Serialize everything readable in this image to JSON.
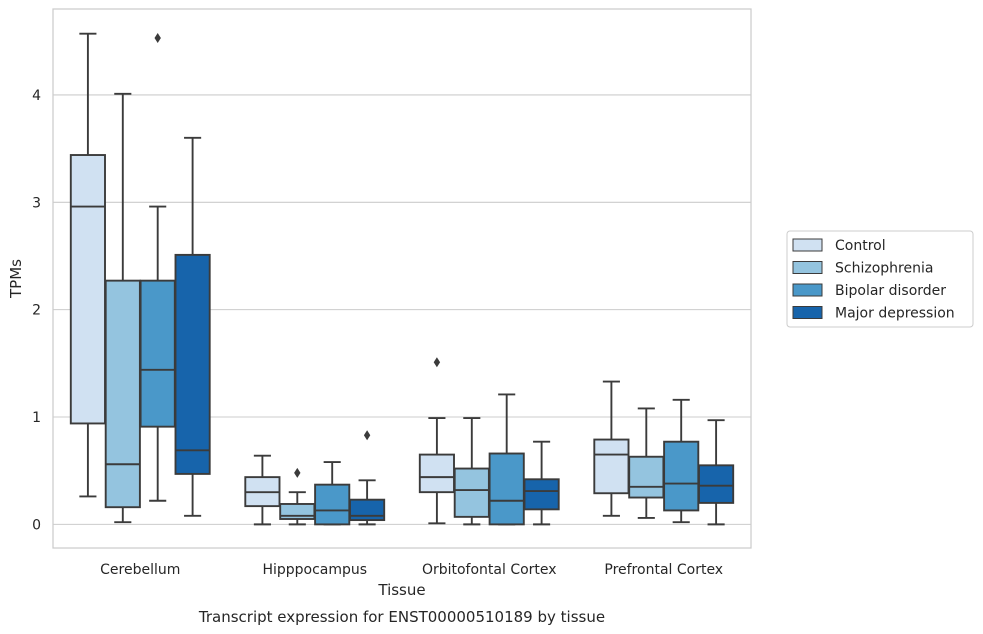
{
  "chart_data": {
    "type": "box",
    "title": "",
    "caption": "Transcript expression for ENST00000510189 by tissue",
    "xlabel": "Tissue",
    "ylabel": "TPMs",
    "ylim": [
      -0.22,
      4.8
    ],
    "yticks": [
      0,
      1,
      2,
      3,
      4
    ],
    "grid": "horizontal",
    "legend_position": "right",
    "categories": [
      "Cerebellum",
      "Hipppocampus",
      "Orbitofontal Cortex",
      "Prefrontal Cortex"
    ],
    "series": [
      {
        "name": "Control",
        "color": "#d0e1f2",
        "boxes": [
          {
            "whislo": 0.26,
            "q1": 0.94,
            "med": 2.96,
            "q3": 3.44,
            "whishi": 4.57,
            "fliers": []
          },
          {
            "whislo": 0.0,
            "q1": 0.17,
            "med": 0.3,
            "q3": 0.44,
            "whishi": 0.64,
            "fliers": []
          },
          {
            "whislo": 0.01,
            "q1": 0.3,
            "med": 0.44,
            "q3": 0.65,
            "whishi": 0.99,
            "fliers": [
              1.51
            ]
          },
          {
            "whislo": 0.08,
            "q1": 0.29,
            "med": 0.65,
            "q3": 0.79,
            "whishi": 1.33,
            "fliers": []
          }
        ]
      },
      {
        "name": "Schizophrenia",
        "color": "#94c4df",
        "boxes": [
          {
            "whislo": 0.02,
            "q1": 0.16,
            "med": 0.56,
            "q3": 2.27,
            "whishi": 4.01,
            "fliers": []
          },
          {
            "whislo": 0.0,
            "q1": 0.05,
            "med": 0.08,
            "q3": 0.19,
            "whishi": 0.3,
            "fliers": [
              0.48
            ]
          },
          {
            "whislo": 0.0,
            "q1": 0.07,
            "med": 0.32,
            "q3": 0.52,
            "whishi": 0.99,
            "fliers": []
          },
          {
            "whislo": 0.06,
            "q1": 0.25,
            "med": 0.35,
            "q3": 0.63,
            "whishi": 1.08,
            "fliers": []
          }
        ]
      },
      {
        "name": "Bipolar disorder",
        "color": "#4a98c9",
        "boxes": [
          {
            "whislo": 0.22,
            "q1": 0.91,
            "med": 1.44,
            "q3": 2.27,
            "whishi": 2.96,
            "fliers": [
              4.53
            ]
          },
          {
            "whislo": 0.0,
            "q1": 0.0,
            "med": 0.13,
            "q3": 0.37,
            "whishi": 0.58,
            "fliers": []
          },
          {
            "whislo": 0.0,
            "q1": 0.0,
            "med": 0.22,
            "q3": 0.66,
            "whishi": 1.21,
            "fliers": []
          },
          {
            "whislo": 0.02,
            "q1": 0.13,
            "med": 0.38,
            "q3": 0.77,
            "whishi": 1.16,
            "fliers": []
          }
        ]
      },
      {
        "name": "Major depression",
        "color": "#1764ab",
        "boxes": [
          {
            "whislo": 0.08,
            "q1": 0.47,
            "med": 0.69,
            "q3": 2.51,
            "whishi": 3.6,
            "fliers": []
          },
          {
            "whislo": 0.0,
            "q1": 0.04,
            "med": 0.08,
            "q3": 0.23,
            "whishi": 0.41,
            "fliers": [
              0.83
            ]
          },
          {
            "whislo": 0.0,
            "q1": 0.14,
            "med": 0.31,
            "q3": 0.42,
            "whishi": 0.77,
            "fliers": []
          },
          {
            "whislo": 0.0,
            "q1": 0.2,
            "med": 0.36,
            "q3": 0.55,
            "whishi": 0.97,
            "fliers": []
          }
        ]
      }
    ]
  }
}
